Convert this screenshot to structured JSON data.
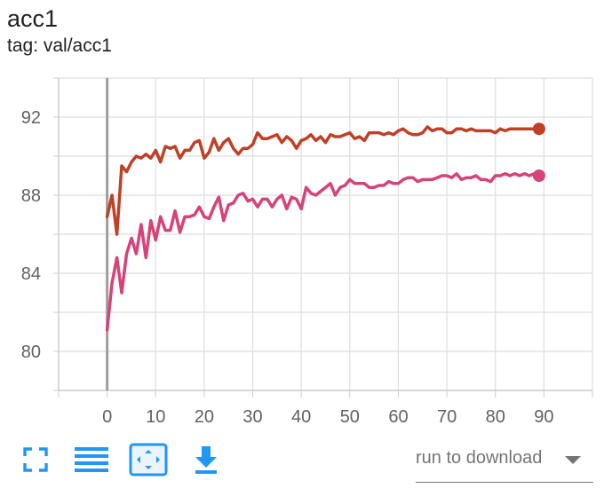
{
  "header": {
    "title": "acc1",
    "tag": "tag: val/acc1"
  },
  "chart_data": {
    "type": "line",
    "title": "acc1",
    "subtitle": "tag: val/acc1",
    "xlim": [
      -10,
      100
    ],
    "ylim": [
      78,
      94
    ],
    "x_ticks": [
      0,
      10,
      20,
      30,
      40,
      50,
      60,
      70,
      80,
      90
    ],
    "y_ticks": [
      80,
      84,
      88,
      92
    ],
    "grid": true,
    "series": [
      {
        "color": "#bf4026",
        "x": [
          0,
          1,
          2,
          3,
          4,
          5,
          6,
          7,
          8,
          9,
          10,
          11,
          12,
          13,
          14,
          15,
          16,
          17,
          18,
          19,
          20,
          21,
          22,
          23,
          24,
          25,
          26,
          27,
          28,
          29,
          30,
          31,
          32,
          33,
          34,
          35,
          36,
          37,
          38,
          39,
          40,
          41,
          42,
          43,
          44,
          45,
          46,
          47,
          48,
          49,
          50,
          51,
          52,
          53,
          54,
          55,
          56,
          57,
          58,
          59,
          60,
          61,
          62,
          63,
          64,
          65,
          66,
          67,
          68,
          69,
          70,
          71,
          72,
          73,
          74,
          75,
          76,
          77,
          78,
          79,
          80,
          81,
          82,
          83,
          84,
          85,
          86,
          87,
          88,
          89
        ],
        "values": [
          86.9,
          88.0,
          86.0,
          89.5,
          89.2,
          89.7,
          90.0,
          89.9,
          90.1,
          89.9,
          90.3,
          89.7,
          90.5,
          90.4,
          90.5,
          89.9,
          90.3,
          90.3,
          90.7,
          90.8,
          89.9,
          90.2,
          90.9,
          90.3,
          90.7,
          90.9,
          90.4,
          90.1,
          90.4,
          90.4,
          90.6,
          91.2,
          90.9,
          90.9,
          91.0,
          91.1,
          90.7,
          91.0,
          90.8,
          90.4,
          90.8,
          90.9,
          91.1,
          90.8,
          91.0,
          90.7,
          91.1,
          91.0,
          91.0,
          91.1,
          91.2,
          90.9,
          91.0,
          90.8,
          91.2,
          91.2,
          91.2,
          91.1,
          91.2,
          91.1,
          91.3,
          91.4,
          91.2,
          91.1,
          91.1,
          91.2,
          91.5,
          91.3,
          91.4,
          91.4,
          91.2,
          91.2,
          91.4,
          91.4,
          91.3,
          91.4,
          91.3,
          91.3,
          91.3,
          91.3,
          91.2,
          91.4,
          91.3,
          91.4,
          91.4,
          91.4,
          91.4,
          91.4,
          91.4,
          91.4
        ]
      },
      {
        "color": "#d6437a",
        "x": [
          0,
          1,
          2,
          3,
          4,
          5,
          6,
          7,
          8,
          9,
          10,
          11,
          12,
          13,
          14,
          15,
          16,
          17,
          18,
          19,
          20,
          21,
          22,
          23,
          24,
          25,
          26,
          27,
          28,
          29,
          30,
          31,
          32,
          33,
          34,
          35,
          36,
          37,
          38,
          39,
          40,
          41,
          42,
          43,
          44,
          45,
          46,
          47,
          48,
          49,
          50,
          51,
          52,
          53,
          54,
          55,
          56,
          57,
          58,
          59,
          60,
          61,
          62,
          63,
          64,
          65,
          66,
          67,
          68,
          69,
          70,
          71,
          72,
          73,
          74,
          75,
          76,
          77,
          78,
          79,
          80,
          81,
          82,
          83,
          84,
          85,
          86,
          87,
          88,
          89
        ],
        "values": [
          81.1,
          83.5,
          84.8,
          83.0,
          85.0,
          85.8,
          85.0,
          86.5,
          84.8,
          86.7,
          85.7,
          86.9,
          86.2,
          86.2,
          87.2,
          86.1,
          86.9,
          86.9,
          87.0,
          87.4,
          86.9,
          86.8,
          87.4,
          87.9,
          86.7,
          87.5,
          87.6,
          88.0,
          88.1,
          87.7,
          87.8,
          87.4,
          87.8,
          87.8,
          87.4,
          87.8,
          88.0,
          87.3,
          87.9,
          87.8,
          87.3,
          88.4,
          88.1,
          88.0,
          88.2,
          88.4,
          88.6,
          88.0,
          88.4,
          88.5,
          88.8,
          88.6,
          88.6,
          88.6,
          88.4,
          88.4,
          88.5,
          88.5,
          88.7,
          88.6,
          88.6,
          88.8,
          88.9,
          88.9,
          88.7,
          88.8,
          88.8,
          88.8,
          88.9,
          89.0,
          89.0,
          88.9,
          89.1,
          88.8,
          88.9,
          88.9,
          89.0,
          88.8,
          88.8,
          88.7,
          89.0,
          89.0,
          89.1,
          89.0,
          89.1,
          89.0,
          89.1,
          89.0,
          89.1,
          89.0
        ]
      }
    ]
  },
  "toolbar": {
    "fullscreen_icon": "fullscreen-icon",
    "log_scale_icon": "lines-icon",
    "fit_domain_icon": "fit-domain-icon",
    "download_icon": "download-icon",
    "accent_color": "#2196f3"
  },
  "download": {
    "selected": "run to download"
  }
}
